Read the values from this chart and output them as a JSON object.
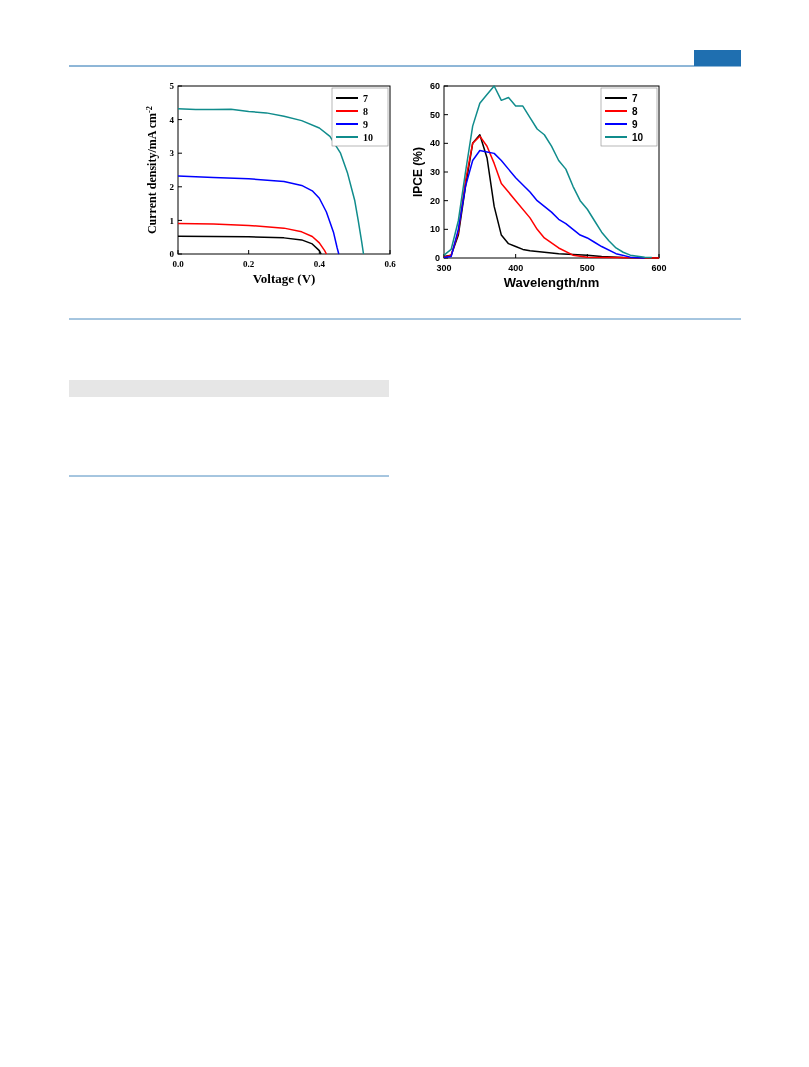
{
  "chart_data": [
    {
      "type": "line",
      "xlabel": "Voltage (V)",
      "ylabel": "Current density/mA cm$^{-2}$",
      "xlim": [
        0,
        0.6
      ],
      "ylim": [
        0,
        5
      ],
      "xticks": [
        {
          "value": 0,
          "label": "0.0"
        },
        0.2,
        0.4,
        0.6
      ],
      "yticks": [
        0,
        1,
        2,
        3,
        4,
        5
      ],
      "legend": "top right",
      "grid": false,
      "series": [
        {
          "name": "7",
          "color": "#000000",
          "x": [
            0,
            0.1,
            0.2,
            0.3,
            0.35,
            0.38,
            0.4,
            0.405
          ],
          "values": [
            0.53,
            0.52,
            0.51,
            0.48,
            0.42,
            0.3,
            0.1,
            0
          ]
        },
        {
          "name": "8",
          "color": "#ff0000",
          "x": [
            0,
            0.1,
            0.2,
            0.3,
            0.35,
            0.38,
            0.4,
            0.415,
            0.42
          ],
          "values": [
            0.91,
            0.89,
            0.85,
            0.77,
            0.66,
            0.52,
            0.33,
            0.1,
            0
          ]
        },
        {
          "name": "9",
          "color": "#0000ff",
          "x": [
            0,
            0.1,
            0.2,
            0.3,
            0.35,
            0.38,
            0.4,
            0.42,
            0.44,
            0.45,
            0.455
          ],
          "values": [
            2.32,
            2.28,
            2.24,
            2.16,
            2.04,
            1.88,
            1.66,
            1.25,
            0.65,
            0.2,
            0
          ]
        },
        {
          "name": "10",
          "color": "#108c8c",
          "x": [
            0,
            0.05,
            0.1,
            0.15,
            0.2,
            0.25,
            0.3,
            0.35,
            0.4,
            0.43,
            0.46,
            0.48,
            0.5,
            0.51,
            0.52,
            0.525
          ],
          "values": [
            4.32,
            4.3,
            4.3,
            4.31,
            4.24,
            4.2,
            4.1,
            3.97,
            3.75,
            3.5,
            3.0,
            2.4,
            1.6,
            1.0,
            0.35,
            0
          ]
        }
      ]
    },
    {
      "type": "line",
      "xlabel": "Wavelength/nm",
      "ylabel": "IPCE (%)",
      "xlim": [
        300,
        600
      ],
      "ylim": [
        0,
        60
      ],
      "xticks": [
        300,
        400,
        500,
        600
      ],
      "yticks": [
        0,
        10,
        20,
        30,
        40,
        50,
        60
      ],
      "legend": "top right",
      "grid": false,
      "series": [
        {
          "name": "7",
          "color": "#000000",
          "x": [
            300,
            310,
            320,
            330,
            340,
            350,
            360,
            370,
            380,
            390,
            400,
            410,
            420,
            440,
            460,
            480,
            500,
            520,
            550,
            600
          ],
          "values": [
            0.5,
            1,
            8,
            25,
            40,
            43,
            35,
            18,
            8,
            5,
            4,
            3,
            2.5,
            2,
            1.5,
            1.2,
            1,
            0.5,
            0.2,
            0
          ]
        },
        {
          "name": "8",
          "color": "#ff0000",
          "x": [
            300,
            310,
            320,
            330,
            340,
            350,
            360,
            370,
            380,
            390,
            400,
            420,
            430,
            440,
            460,
            480,
            500,
            600
          ],
          "values": [
            0.3,
            1,
            9,
            27,
            40,
            42.5,
            39,
            33,
            26,
            23,
            20,
            14,
            10,
            7,
            3.5,
            1,
            0.3,
            0
          ]
        },
        {
          "name": "9",
          "color": "#0000ff",
          "x": [
            300,
            310,
            320,
            330,
            340,
            350,
            360,
            370,
            380,
            390,
            400,
            420,
            430,
            450,
            460,
            470,
            480,
            490,
            500,
            510,
            520,
            540,
            560,
            580
          ],
          "values": [
            0.2,
            0.5,
            10,
            25,
            34,
            37.5,
            37,
            36.5,
            34,
            31,
            28,
            23,
            20,
            16,
            13.5,
            12,
            10,
            8,
            7,
            5.5,
            4,
            1.5,
            0.3,
            0
          ]
        },
        {
          "name": "10",
          "color": "#108c8c",
          "x": [
            300,
            310,
            320,
            330,
            340,
            350,
            360,
            370,
            380,
            390,
            400,
            410,
            420,
            430,
            440,
            450,
            460,
            470,
            480,
            490,
            500,
            510,
            520,
            530,
            540,
            550,
            560,
            580,
            590
          ],
          "values": [
            1,
            3,
            13,
            30,
            46,
            54,
            57,
            60,
            55,
            56,
            53,
            53,
            49,
            45,
            43,
            39,
            34,
            31,
            25,
            20,
            17,
            13,
            9,
            6,
            3.5,
            2,
            1,
            0.3,
            0.2
          ]
        }
      ]
    }
  ]
}
